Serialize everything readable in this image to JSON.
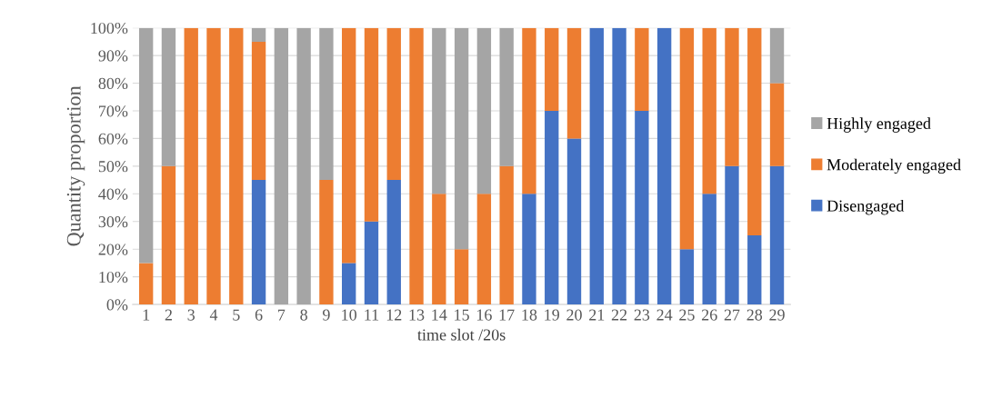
{
  "chart_data": {
    "type": "bar",
    "stacked": true,
    "xlabel": "time slot /20s",
    "ylabel": "Quantity proportion",
    "categories": [
      "1",
      "2",
      "3",
      "4",
      "5",
      "6",
      "7",
      "8",
      "9",
      "10",
      "11",
      "12",
      "13",
      "14",
      "15",
      "16",
      "17",
      "18",
      "19",
      "20",
      "21",
      "22",
      "23",
      "24",
      "25",
      "26",
      "27",
      "28",
      "29"
    ],
    "series": [
      {
        "name": "Disengaged",
        "color": "#4472c4",
        "values": [
          0,
          0,
          0,
          0,
          0,
          45,
          0,
          0,
          0,
          15,
          30,
          45,
          0,
          0,
          0,
          0,
          0,
          40,
          70,
          60,
          100,
          100,
          70,
          100,
          20,
          40,
          50,
          25,
          50
        ]
      },
      {
        "name": "Moderately engaged",
        "color": "#ed7d31",
        "values": [
          15,
          50,
          100,
          100,
          100,
          50,
          0,
          0,
          45,
          85,
          70,
          55,
          100,
          40,
          20,
          40,
          50,
          60,
          30,
          40,
          0,
          0,
          30,
          0,
          80,
          60,
          50,
          75,
          30
        ]
      },
      {
        "name": "Highly engaged",
        "color": "#a5a5a5",
        "values": [
          85,
          50,
          0,
          0,
          0,
          5,
          100,
          100,
          55,
          0,
          0,
          0,
          0,
          60,
          80,
          60,
          50,
          0,
          0,
          0,
          0,
          0,
          0,
          0,
          0,
          0,
          0,
          0,
          20
        ]
      }
    ],
    "ylim": [
      0,
      100
    ],
    "yticks": [
      {
        "value": 0,
        "label": "0%"
      },
      {
        "value": 10,
        "label": "10%"
      },
      {
        "value": 20,
        "label": "20%"
      },
      {
        "value": 30,
        "label": "30%"
      },
      {
        "value": 40,
        "label": "40%"
      },
      {
        "value": 50,
        "label": "50%"
      },
      {
        "value": 60,
        "label": "60%"
      },
      {
        "value": 70,
        "label": "70%"
      },
      {
        "value": 80,
        "label": "80%"
      },
      {
        "value": 90,
        "label": "90%"
      },
      {
        "value": 100,
        "label": "100%"
      }
    ],
    "grid": "y",
    "legend": "right"
  }
}
